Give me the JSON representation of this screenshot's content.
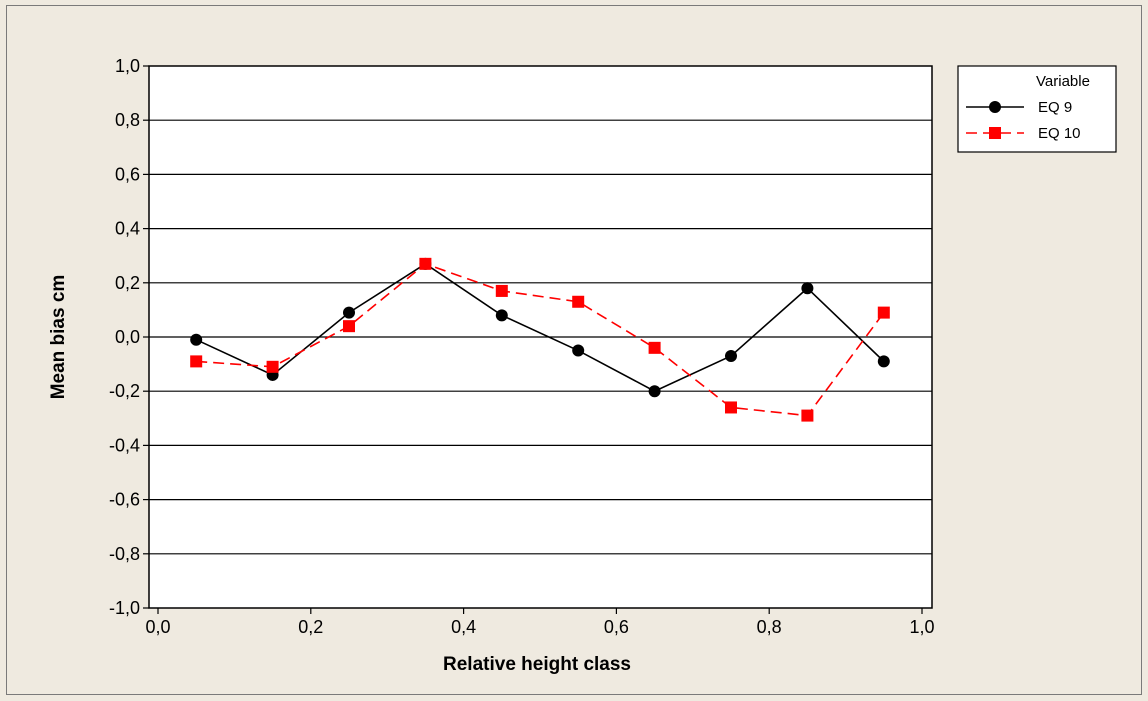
{
  "chart_data": {
    "type": "line",
    "xlabel": "Relative height class",
    "ylabel": "Mean bias cm",
    "xlim": [
      0.0,
      1.0
    ],
    "ylim": [
      -1.0,
      1.0
    ],
    "x_ticks": [
      "0,0",
      "0,2",
      "0,4",
      "0,6",
      "0,8",
      "1,0"
    ],
    "y_ticks": [
      "-1,0",
      "-0,8",
      "-0,6",
      "-0,4",
      "-0,2",
      "0,0",
      "0,2",
      "0,4",
      "0,6",
      "0,8",
      "1,0"
    ],
    "grid": "horizontal",
    "legend_title": "Variable",
    "legend_position": "top-right, outside plot",
    "x": [
      0.05,
      0.15,
      0.25,
      0.35,
      0.45,
      0.55,
      0.65,
      0.75,
      0.85,
      0.95
    ],
    "series": [
      {
        "name": "EQ 9",
        "color": "#000000",
        "marker": "circle",
        "line": "solid",
        "values": [
          -0.01,
          -0.14,
          0.09,
          0.27,
          0.08,
          -0.05,
          -0.2,
          -0.07,
          0.18,
          -0.09
        ]
      },
      {
        "name": "EQ 10",
        "color": "#ff0000",
        "marker": "square",
        "line": "dashed",
        "values": [
          -0.09,
          -0.11,
          0.04,
          0.27,
          0.17,
          0.13,
          -0.04,
          -0.26,
          -0.29,
          0.09
        ]
      }
    ]
  }
}
